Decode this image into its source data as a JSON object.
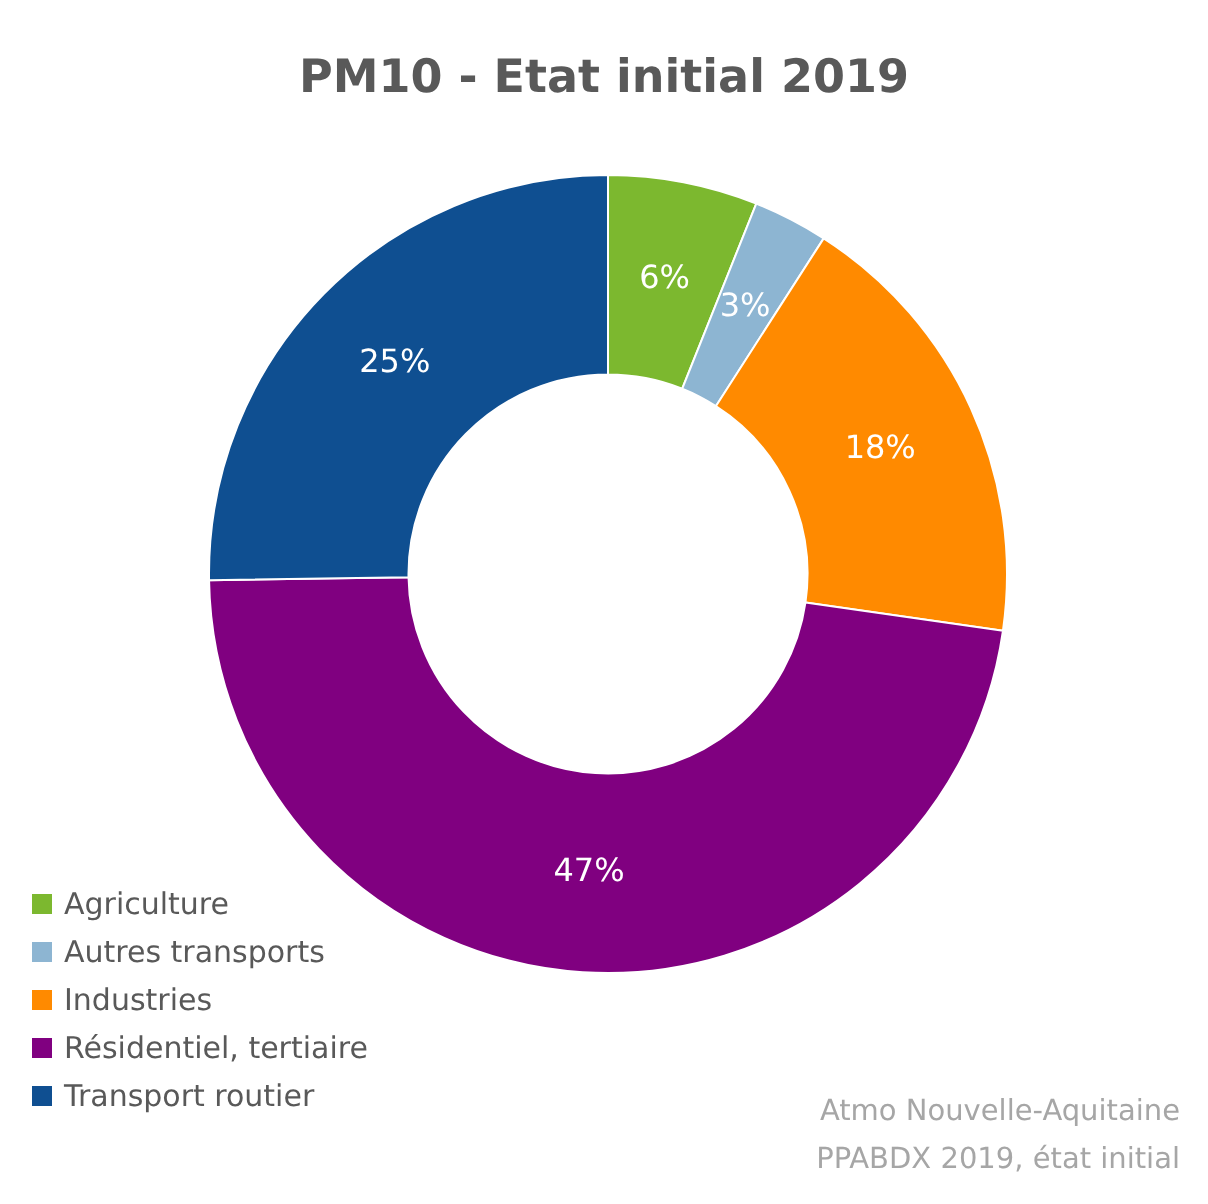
{
  "chart_data": {
    "type": "donut",
    "title": "PM10 - Etat initial  2019",
    "categories": [
      "Agriculture",
      "Autres transports",
      "Industries",
      "Résidentiel, tertiaire",
      "Transport routier"
    ],
    "values": [
      6,
      3,
      18,
      47,
      25
    ],
    "value_labels": [
      "6%",
      "3%",
      "18%",
      "47%",
      "25%"
    ],
    "colors": [
      "#7cb82f",
      "#8db5d2",
      "#ff8a00",
      "#800080",
      "#0f4f91"
    ],
    "legend": "bottom left",
    "annotations": [
      "Atmo Nouvelle-Aquitaine",
      "PPABDX 2019, état initial"
    ]
  }
}
